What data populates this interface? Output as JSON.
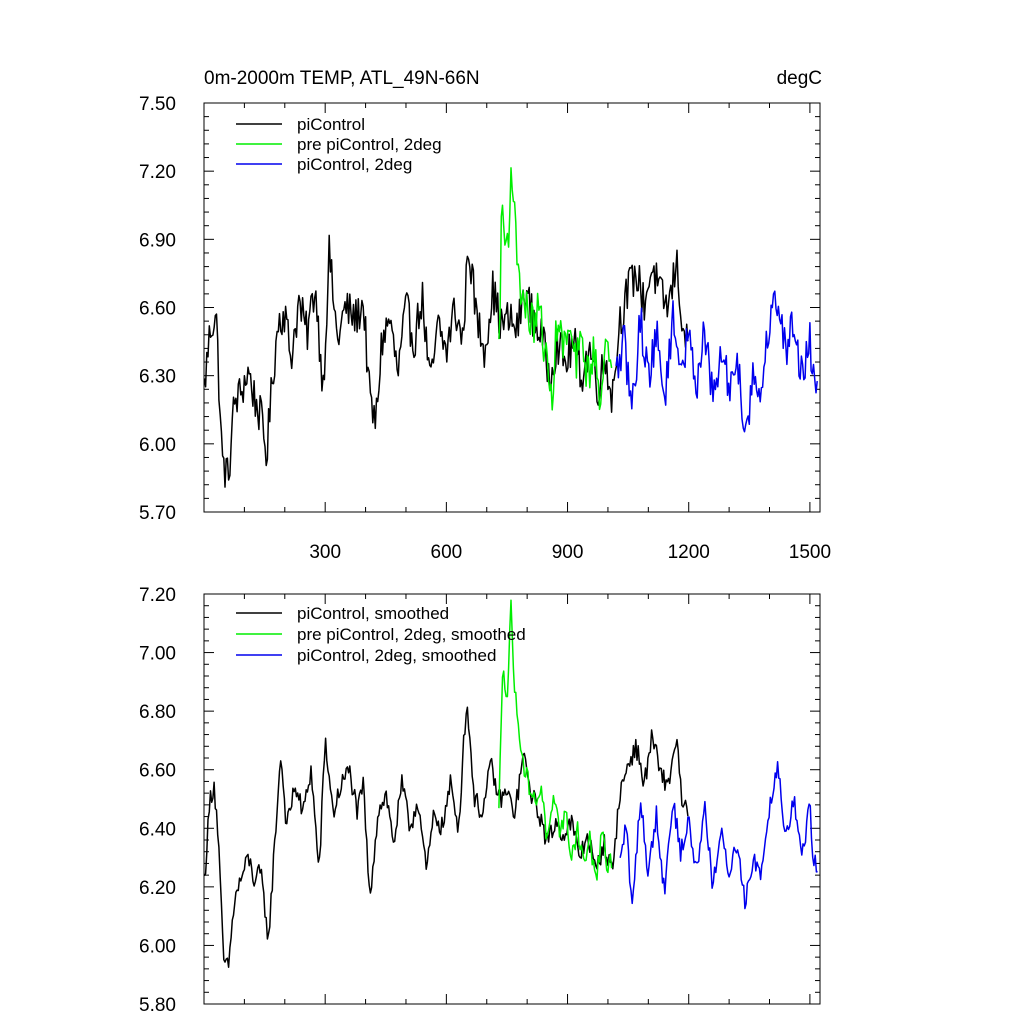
{
  "chart_data": [
    {
      "type": "line",
      "title": "0m-2000m TEMP, ATL_49N-66N",
      "units": "degC",
      "xlim": [
        0,
        1525
      ],
      "ylim": [
        5.7,
        7.5
      ],
      "xticks": [
        300,
        600,
        900,
        1200,
        1500
      ],
      "xtick_labels": [
        "300",
        "600",
        "900",
        "1200",
        "1500"
      ],
      "yticks": [
        5.7,
        6.0,
        6.3,
        6.6,
        6.9,
        7.2,
        7.5
      ],
      "ytick_labels": [
        "5.70",
        "6.00",
        "6.30",
        "6.60",
        "6.90",
        "7.20",
        "7.50"
      ],
      "legend": "top-left",
      "series": [
        {
          "name": "piControl",
          "color": "#000000",
          "x_start": 1,
          "x_end": 1200,
          "points": [
            [
              1,
              6.25
            ],
            [
              15,
              6.5
            ],
            [
              30,
              6.58
            ],
            [
              45,
              5.92
            ],
            [
              60,
              5.85
            ],
            [
              75,
              6.18
            ],
            [
              90,
              6.22
            ],
            [
              110,
              6.32
            ],
            [
              125,
              6.2
            ],
            [
              140,
              6.12
            ],
            [
              155,
              5.95
            ],
            [
              170,
              6.3
            ],
            [
              185,
              6.55
            ],
            [
              200,
              6.58
            ],
            [
              215,
              6.38
            ],
            [
              235,
              6.62
            ],
            [
              255,
              6.48
            ],
            [
              275,
              6.7
            ],
            [
              295,
              6.25
            ],
            [
              310,
              6.84
            ],
            [
              330,
              6.45
            ],
            [
              350,
              6.6
            ],
            [
              375,
              6.55
            ],
            [
              395,
              6.62
            ],
            [
              410,
              6.2
            ],
            [
              425,
              6.08
            ],
            [
              440,
              6.45
            ],
            [
              460,
              6.55
            ],
            [
              480,
              6.3
            ],
            [
              500,
              6.6
            ],
            [
              520,
              6.45
            ],
            [
              540,
              6.65
            ],
            [
              560,
              6.25
            ],
            [
              580,
              6.52
            ],
            [
              600,
              6.4
            ],
            [
              620,
              6.6
            ],
            [
              640,
              6.45
            ],
            [
              655,
              6.88
            ],
            [
              675,
              6.55
            ],
            [
              695,
              6.42
            ],
            [
              715,
              6.68
            ],
            [
              735,
              6.52
            ],
            [
              755,
              6.55
            ],
            [
              775,
              6.5
            ],
            [
              795,
              6.68
            ],
            [
              815,
              6.55
            ],
            [
              835,
              6.48
            ],
            [
              855,
              6.3
            ],
            [
              875,
              6.45
            ],
            [
              895,
              6.35
            ],
            [
              915,
              6.45
            ],
            [
              935,
              6.3
            ],
            [
              955,
              6.42
            ],
            [
              975,
              6.25
            ],
            [
              995,
              6.38
            ],
            [
              1010,
              6.2
            ],
            [
              1030,
              6.55
            ],
            [
              1050,
              6.68
            ],
            [
              1070,
              6.75
            ],
            [
              1090,
              6.62
            ],
            [
              1110,
              6.78
            ],
            [
              1130,
              6.65
            ],
            [
              1150,
              6.6
            ],
            [
              1170,
              6.8
            ],
            [
              1185,
              6.52
            ],
            [
              1200,
              6.4
            ]
          ]
        },
        {
          "name": "pre piControl, 2deg",
          "color": "#00ee00",
          "x_start": 730,
          "x_end": 1010,
          "points": [
            [
              730,
              6.42
            ],
            [
              738,
              7.08
            ],
            [
              746,
              6.85
            ],
            [
              754,
              6.95
            ],
            [
              762,
              7.24
            ],
            [
              770,
              6.95
            ],
            [
              778,
              6.8
            ],
            [
              786,
              6.65
            ],
            [
              800,
              6.58
            ],
            [
              815,
              6.52
            ],
            [
              830,
              6.6
            ],
            [
              845,
              6.4
            ],
            [
              860,
              6.18
            ],
            [
              875,
              6.55
            ],
            [
              890,
              6.42
            ],
            [
              905,
              6.5
            ],
            [
              920,
              6.35
            ],
            [
              935,
              6.45
            ],
            [
              950,
              6.3
            ],
            [
              965,
              6.4
            ],
            [
              980,
              6.22
            ],
            [
              995,
              6.45
            ],
            [
              1010,
              6.25
            ]
          ]
        },
        {
          "name": "piControl, 2deg",
          "color": "#0000ee",
          "x_start": 1020,
          "x_end": 1520,
          "points": [
            [
              1020,
              6.3
            ],
            [
              1040,
              6.45
            ],
            [
              1060,
              6.15
            ],
            [
              1080,
              6.55
            ],
            [
              1100,
              6.3
            ],
            [
              1120,
              6.48
            ],
            [
              1140,
              6.2
            ],
            [
              1160,
              6.55
            ],
            [
              1180,
              6.35
            ],
            [
              1200,
              6.45
            ],
            [
              1220,
              6.28
            ],
            [
              1240,
              6.5
            ],
            [
              1260,
              6.18
            ],
            [
              1280,
              6.4
            ],
            [
              1300,
              6.25
            ],
            [
              1320,
              6.38
            ],
            [
              1340,
              6.05
            ],
            [
              1360,
              6.3
            ],
            [
              1380,
              6.22
            ],
            [
              1400,
              6.55
            ],
            [
              1420,
              6.65
            ],
            [
              1440,
              6.4
            ],
            [
              1460,
              6.55
            ],
            [
              1480,
              6.3
            ],
            [
              1500,
              6.45
            ],
            [
              1510,
              6.28
            ],
            [
              1520,
              6.3
            ]
          ]
        }
      ],
      "legend_labels": [
        "piControl",
        "pre piControl, 2deg",
        "piControl, 2deg"
      ]
    },
    {
      "type": "line",
      "title": "",
      "xlim": [
        0,
        1525
      ],
      "ylim": [
        5.8,
        7.2
      ],
      "xticks": [
        300,
        600,
        900,
        1200,
        1500
      ],
      "yticks": [
        5.8,
        6.0,
        6.2,
        6.4,
        6.6,
        6.8,
        7.0,
        7.2
      ],
      "ytick_labels": [
        "5.80",
        "6.00",
        "6.20",
        "6.40",
        "6.60",
        "6.80",
        "7.00",
        "7.20"
      ],
      "legend": "top-left",
      "series": [
        {
          "name": "piControl, smoothed",
          "color": "#000000",
          "x_start": 1,
          "x_end": 1200,
          "points": [
            [
              1,
              6.22
            ],
            [
              15,
              6.5
            ],
            [
              25,
              6.55
            ],
            [
              35,
              6.38
            ],
            [
              48,
              5.95
            ],
            [
              60,
              5.92
            ],
            [
              75,
              6.15
            ],
            [
              90,
              6.22
            ],
            [
              110,
              6.3
            ],
            [
              125,
              6.22
            ],
            [
              140,
              6.25
            ],
            [
              160,
              6.02
            ],
            [
              175,
              6.35
            ],
            [
              190,
              6.65
            ],
            [
              205,
              6.4
            ],
            [
              225,
              6.55
            ],
            [
              245,
              6.45
            ],
            [
              265,
              6.6
            ],
            [
              285,
              6.25
            ],
            [
              300,
              6.7
            ],
            [
              320,
              6.45
            ],
            [
              340,
              6.55
            ],
            [
              360,
              6.6
            ],
            [
              380,
              6.45
            ],
            [
              395,
              6.55
            ],
            [
              410,
              6.15
            ],
            [
              430,
              6.45
            ],
            [
              450,
              6.52
            ],
            [
              470,
              6.35
            ],
            [
              490,
              6.55
            ],
            [
              510,
              6.4
            ],
            [
              530,
              6.5
            ],
            [
              550,
              6.25
            ],
            [
              570,
              6.45
            ],
            [
              590,
              6.4
            ],
            [
              610,
              6.55
            ],
            [
              630,
              6.4
            ],
            [
              650,
              6.84
            ],
            [
              670,
              6.5
            ],
            [
              690,
              6.45
            ],
            [
              710,
              6.62
            ],
            [
              730,
              6.5
            ],
            [
              750,
              6.52
            ],
            [
              770,
              6.45
            ],
            [
              790,
              6.65
            ],
            [
              810,
              6.52
            ],
            [
              830,
              6.45
            ],
            [
              850,
              6.35
            ],
            [
              870,
              6.42
            ],
            [
              890,
              6.38
            ],
            [
              910,
              6.42
            ],
            [
              930,
              6.3
            ],
            [
              950,
              6.38
            ],
            [
              970,
              6.25
            ],
            [
              990,
              6.35
            ],
            [
              1010,
              6.25
            ],
            [
              1030,
              6.52
            ],
            [
              1050,
              6.62
            ],
            [
              1070,
              6.68
            ],
            [
              1090,
              6.55
            ],
            [
              1110,
              6.72
            ],
            [
              1130,
              6.58
            ],
            [
              1150,
              6.55
            ],
            [
              1170,
              6.72
            ],
            [
              1185,
              6.45
            ],
            [
              1200,
              6.48
            ]
          ]
        },
        {
          "name": "pre piControl, 2deg, smoothed",
          "color": "#00ee00",
          "x_start": 730,
          "x_end": 1010,
          "points": [
            [
              730,
              6.45
            ],
            [
              740,
              7.0
            ],
            [
              750,
              6.82
            ],
            [
              760,
              7.16
            ],
            [
              770,
              6.85
            ],
            [
              780,
              6.75
            ],
            [
              790,
              6.62
            ],
            [
              805,
              6.55
            ],
            [
              820,
              6.48
            ],
            [
              835,
              6.55
            ],
            [
              850,
              6.35
            ],
            [
              865,
              6.48
            ],
            [
              880,
              6.4
            ],
            [
              895,
              6.45
            ],
            [
              910,
              6.3
            ],
            [
              925,
              6.4
            ],
            [
              940,
              6.28
            ],
            [
              955,
              6.36
            ],
            [
              970,
              6.22
            ],
            [
              985,
              6.38
            ],
            [
              1000,
              6.25
            ],
            [
              1010,
              6.3
            ]
          ]
        },
        {
          "name": "piControl, 2deg, smoothed",
          "color": "#0000ee",
          "x_start": 1030,
          "x_end": 1520,
          "points": [
            [
              1030,
              6.28
            ],
            [
              1045,
              6.42
            ],
            [
              1060,
              6.12
            ],
            [
              1080,
              6.5
            ],
            [
              1100,
              6.25
            ],
            [
              1120,
              6.45
            ],
            [
              1140,
              6.18
            ],
            [
              1160,
              6.5
            ],
            [
              1180,
              6.32
            ],
            [
              1200,
              6.42
            ],
            [
              1220,
              6.25
            ],
            [
              1240,
              6.48
            ],
            [
              1260,
              6.2
            ],
            [
              1280,
              6.38
            ],
            [
              1300,
              6.25
            ],
            [
              1320,
              6.35
            ],
            [
              1340,
              6.15
            ],
            [
              1360,
              6.3
            ],
            [
              1380,
              6.25
            ],
            [
              1400,
              6.48
            ],
            [
              1420,
              6.62
            ],
            [
              1440,
              6.38
            ],
            [
              1460,
              6.5
            ],
            [
              1480,
              6.3
            ],
            [
              1500,
              6.48
            ],
            [
              1510,
              6.27
            ],
            [
              1520,
              6.28
            ]
          ]
        }
      ],
      "legend_labels": [
        "piControl, smoothed",
        "pre piControl, 2deg, smoothed",
        "piControl, 2deg, smoothed"
      ]
    }
  ]
}
